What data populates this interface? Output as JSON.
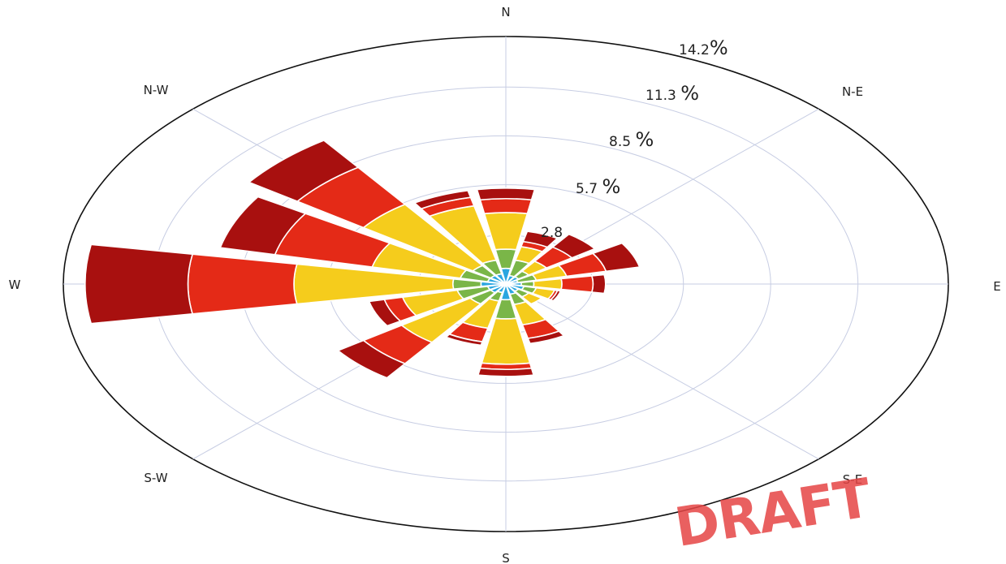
{
  "chart_data": {
    "type": "windrose",
    "directions": [
      "N",
      "NNE",
      "NE",
      "ENE",
      "E",
      "ESE",
      "SE",
      "SSE",
      "S",
      "SSW",
      "SW",
      "WSW",
      "W",
      "WNW",
      "NW",
      "NNW"
    ],
    "compass_labels": [
      {
        "key": "N",
        "text": "N"
      },
      {
        "key": "NE",
        "text": "N-E"
      },
      {
        "key": "E",
        "text": "E"
      },
      {
        "key": "SE",
        "text": "S-E"
      },
      {
        "key": "S",
        "text": "S"
      },
      {
        "key": "SW",
        "text": "S-W"
      },
      {
        "key": "W",
        "text": "W"
      },
      {
        "key": "NW",
        "text": "N-W"
      }
    ],
    "radial_ticks": [
      {
        "value": 2.8,
        "label": "2.8",
        "unit": ""
      },
      {
        "value": 5.7,
        "label": "5.7 ",
        "unit": "%"
      },
      {
        "value": 8.5,
        "label": "8.5 ",
        "unit": "%"
      },
      {
        "value": 11.3,
        "label": "11.3 ",
        "unit": "%"
      },
      {
        "value": 14.2,
        "label": "14.2",
        "unit": "%"
      }
    ],
    "rmax": 14.2,
    "grid": true,
    "colors": [
      "#2aa6e0",
      "#7ab648",
      "#f5cc1c",
      "#e42a17",
      "#a8100f"
    ],
    "series": [
      {
        "values": [
          0.9,
          0.5,
          0.5,
          0.4,
          0.5,
          0.6,
          0.5,
          0.6,
          0.9,
          0.5,
          0.6,
          0.6,
          0.8,
          0.6,
          0.6,
          0.6
        ]
      },
      {
        "values": [
          2.0,
          1.4,
          0.9,
          1.0,
          0.9,
          1.0,
          0.9,
          1.2,
          2.0,
          1.0,
          1.4,
          1.6,
          1.7,
          1.5,
          1.3,
          1.4
        ]
      },
      {
        "values": [
          4.1,
          2.2,
          1.6,
          2.0,
          1.8,
          1.6,
          1.4,
          2.4,
          4.6,
          2.6,
          4.1,
          3.4,
          6.8,
          4.4,
          5.6,
          4.6
        ]
      },
      {
        "values": [
          4.9,
          2.5,
          2.6,
          3.3,
          2.8,
          1.7,
          1.4,
          3.2,
          4.9,
          3.4,
          5.6,
          4.0,
          10.2,
          7.6,
          8.2,
          5.1
        ]
      },
      {
        "values": [
          5.5,
          3.1,
          3.5,
          4.4,
          3.2,
          1.8,
          1.4,
          3.5,
          5.3,
          3.6,
          6.6,
          4.5,
          13.5,
          9.4,
          10.1,
          5.5
        ]
      }
    ]
  },
  "watermark": {
    "text": "DRAFT",
    "color": "#e64545"
  }
}
